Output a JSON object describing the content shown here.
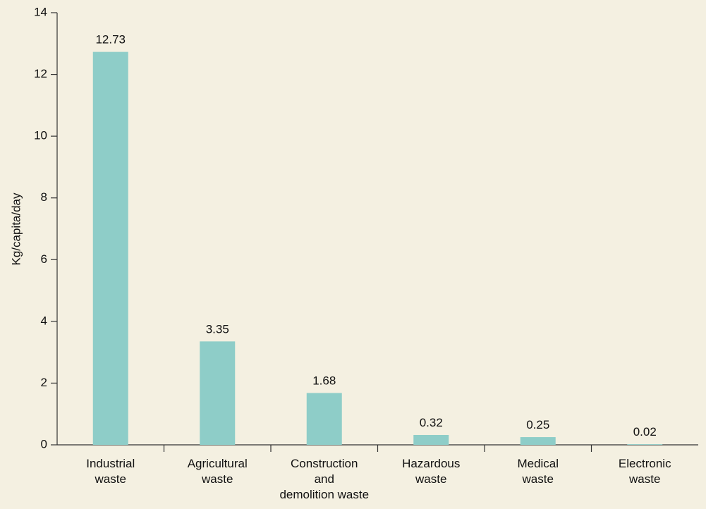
{
  "chart_data": {
    "type": "bar",
    "y_label": "Kg/capita/day",
    "categories": [
      [
        "Industrial",
        "waste"
      ],
      [
        "Agricultural",
        "waste"
      ],
      [
        "Construction",
        "and",
        "demolition waste"
      ],
      [
        "Hazardous",
        "waste"
      ],
      [
        "Medical",
        "waste"
      ],
      [
        "Electronic",
        "waste"
      ]
    ],
    "values": [
      12.73,
      3.35,
      1.68,
      0.32,
      0.25,
      0.02
    ],
    "color": "#8ecdc8",
    "ylim": [
      0,
      14
    ],
    "yticks": [
      0,
      2,
      4,
      6,
      8,
      10,
      12,
      14
    ]
  }
}
